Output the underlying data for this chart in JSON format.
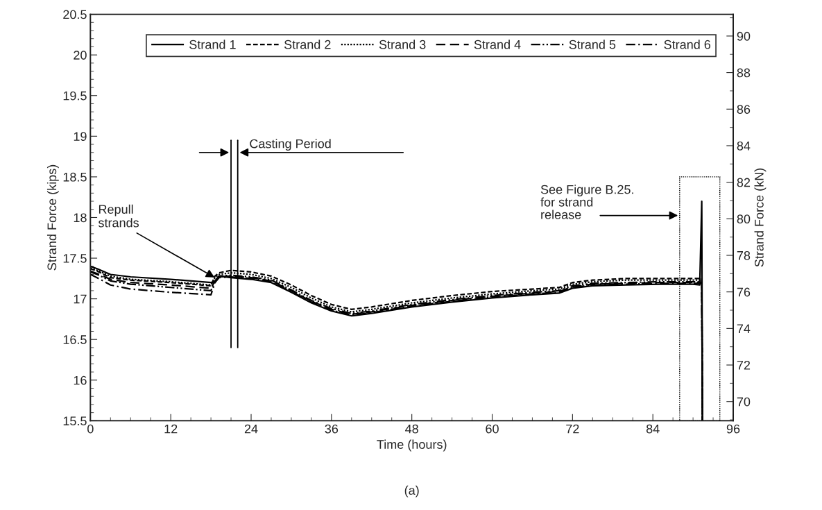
{
  "chart_data": {
    "type": "line",
    "xlabel": "Time (hours)",
    "ylabel": "Strand Force (kips)",
    "y2label": "Strand Force (kN)",
    "x": [
      0,
      1,
      3,
      6,
      12,
      18,
      18.6,
      19.2,
      21,
      24,
      27,
      30,
      33,
      36,
      39,
      42,
      48,
      54,
      60,
      66,
      70,
      72,
      75,
      80,
      85,
      90,
      91,
      91.3,
      91.4
    ],
    "series": [
      {
        "name": "Strand 1",
        "color": "#000000",
        "line_style": "solid",
        "values": [
          17.4,
          17.37,
          17.3,
          17.27,
          17.24,
          17.2,
          17.21,
          17.28,
          17.26,
          17.24,
          17.2,
          17.08,
          16.95,
          16.85,
          16.79,
          16.82,
          16.9,
          16.96,
          17.01,
          17.05,
          17.07,
          17.13,
          17.16,
          17.17,
          17.18,
          17.18,
          17.17,
          18.2,
          15.5
        ]
      },
      {
        "name": "Strand 2",
        "color": "#000000",
        "line_style": "dashed",
        "values": [
          17.37,
          17.34,
          17.26,
          17.23,
          17.2,
          17.16,
          17.28,
          17.32,
          17.35,
          17.33,
          17.28,
          17.17,
          17.04,
          16.93,
          16.87,
          16.9,
          16.98,
          17.04,
          17.09,
          17.12,
          17.14,
          17.2,
          17.23,
          17.25,
          17.25,
          17.25,
          17.25,
          17.25,
          15.5
        ]
      },
      {
        "name": "Strand 3",
        "color": "#000000",
        "line_style": "dotted",
        "values": [
          17.38,
          17.35,
          17.28,
          17.24,
          17.21,
          17.17,
          17.26,
          17.3,
          17.32,
          17.3,
          17.25,
          17.14,
          17.01,
          16.9,
          16.84,
          16.87,
          16.95,
          17.01,
          17.06,
          17.1,
          17.12,
          17.18,
          17.21,
          17.23,
          17.23,
          17.23,
          17.23,
          17.23,
          15.5
        ]
      },
      {
        "name": "Strand 4",
        "color": "#000000",
        "line_style": "longdash",
        "values": [
          17.34,
          17.31,
          17.24,
          17.2,
          17.17,
          17.13,
          17.22,
          17.27,
          17.28,
          17.26,
          17.22,
          17.1,
          16.97,
          16.87,
          16.81,
          16.84,
          16.92,
          16.98,
          17.03,
          17.07,
          17.09,
          17.15,
          17.18,
          17.19,
          17.2,
          17.2,
          17.2,
          17.2,
          15.5
        ]
      },
      {
        "name": "Strand 5",
        "color": "#000000",
        "line_style": "dashdotdot",
        "values": [
          17.33,
          17.3,
          17.22,
          17.18,
          17.14,
          17.1,
          17.22,
          17.28,
          17.29,
          17.27,
          17.23,
          17.11,
          16.98,
          16.88,
          16.82,
          16.85,
          16.93,
          16.99,
          17.04,
          17.08,
          17.1,
          17.16,
          17.19,
          17.2,
          17.21,
          17.21,
          17.21,
          17.21,
          15.5
        ]
      },
      {
        "name": "Strand 6",
        "color": "#000000",
        "line_style": "dashdot",
        "values": [
          17.3,
          17.26,
          17.17,
          17.12,
          17.08,
          17.05,
          17.2,
          17.26,
          17.27,
          17.25,
          17.21,
          17.09,
          16.96,
          16.86,
          16.8,
          16.83,
          16.91,
          16.97,
          17.02,
          17.06,
          17.08,
          17.14,
          17.17,
          17.18,
          17.19,
          17.19,
          17.19,
          17.19,
          15.5
        ]
      }
    ],
    "xlim": [
      0,
      96
    ],
    "xticks": [
      0,
      12,
      24,
      36,
      48,
      60,
      72,
      84,
      96
    ],
    "ylim": [
      15.5,
      20.5
    ],
    "yticks": [
      15.5,
      16,
      16.5,
      17,
      17.5,
      18,
      18.5,
      19,
      19.5,
      20,
      20.5
    ],
    "y2lim": [
      68.95,
      91.19
    ],
    "y2ticks": [
      70,
      72,
      74,
      76,
      78,
      80,
      82,
      84,
      86,
      88,
      90
    ],
    "ref_lines": [
      {
        "axis": "x",
        "value": 21,
        "color": "#000000"
      },
      {
        "axis": "x",
        "value": 22,
        "color": "#000000"
      }
    ],
    "bands": [
      {
        "axis": "x",
        "from": 88,
        "to": 94,
        "color": "#ffffff"
      }
    ],
    "annotations": [
      {
        "text": "Repull strands",
        "x": 18.8,
        "y": 17.25
      },
      {
        "text": "Casting Period",
        "x": 22,
        "y": 18.8
      },
      "See Figure B.25.\nfor strand\nrelease",
      "(a)"
    ],
    "legend": "top",
    "grid": false
  }
}
